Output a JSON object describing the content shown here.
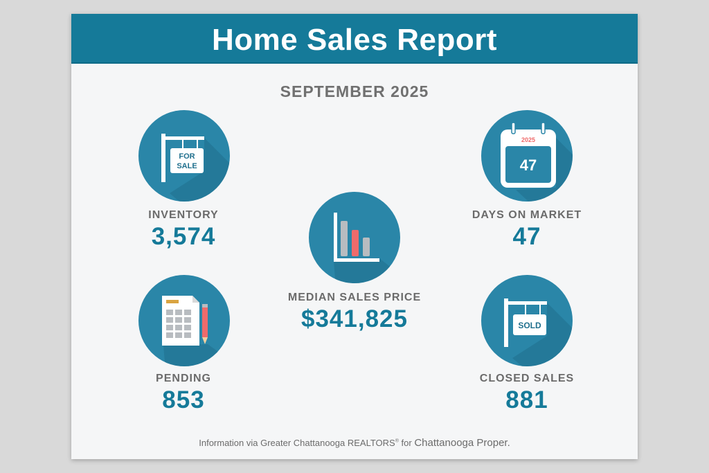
{
  "header": {
    "title": "Home Sales Report"
  },
  "report": {
    "period": "SEPTEMBER 2025"
  },
  "stats": {
    "inventory": {
      "label": "INVENTORY",
      "value": "3,574"
    },
    "days_on_market": {
      "label": "DAYS ON MARKET",
      "value": "47"
    },
    "median_price": {
      "label": "MEDIAN SALES PRICE",
      "value": "$341,825"
    },
    "pending": {
      "label": "PENDING",
      "value": "853"
    },
    "closed_sales": {
      "label": "CLOSED SALES",
      "value": "881"
    }
  },
  "icons": {
    "for_sale_sign": {
      "line1": "FOR",
      "line2": "SALE"
    },
    "calendar": {
      "year": "2025",
      "day": "47"
    },
    "sold_sign": {
      "text": "SOLD"
    },
    "names": [
      "for-sale-sign-icon",
      "calendar-icon",
      "bar-chart-icon",
      "spreadsheet-pencil-icon",
      "sold-sign-icon"
    ]
  },
  "footer": {
    "source": "Information via Greater Chattanooga REALTORS",
    "registered": "®",
    "connector": " for ",
    "place": "Chattanooga Proper."
  },
  "colors": {
    "brand_blue": "#157a99",
    "circle_blue": "#2a86a8",
    "shadow_blue": "#1f6f8d",
    "accent_red": "#ef6b6b",
    "bar_gray": "#b8bcc0",
    "background": "#d9d9d9",
    "card": "#f5f6f7"
  }
}
